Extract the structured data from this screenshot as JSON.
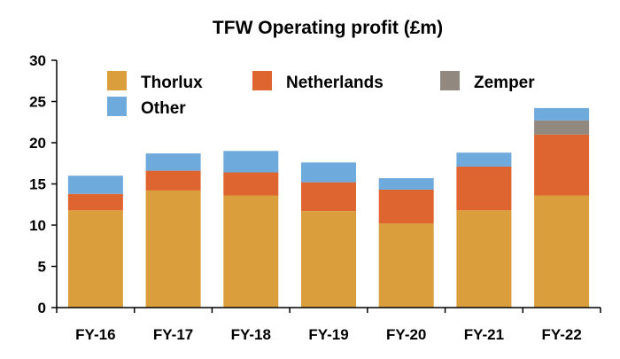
{
  "chart_data": {
    "type": "bar",
    "stacked": true,
    "title": "TFW Operating profit (£m)",
    "xlabel": "",
    "ylabel": "",
    "ylim": [
      0,
      30
    ],
    "yticks": [
      0,
      5,
      10,
      15,
      20,
      25,
      30
    ],
    "grid": false,
    "legend_position": "top-left inside plot",
    "categories": [
      "FY-16",
      "FY-17",
      "FY-18",
      "FY-19",
      "FY-20",
      "FY-21",
      "FY-22"
    ],
    "series": [
      {
        "name": "Thorlux",
        "color": "#DB9E3C",
        "values": [
          11.8,
          14.2,
          13.6,
          11.7,
          10.2,
          11.8,
          13.6
        ]
      },
      {
        "name": "Netherlands",
        "color": "#DE6530",
        "values": [
          2.0,
          2.4,
          2.8,
          3.5,
          4.1,
          5.3,
          7.4
        ]
      },
      {
        "name": "Zemper",
        "color": "#918880",
        "values": [
          0,
          0,
          0,
          0,
          0,
          0,
          1.7
        ]
      },
      {
        "name": "Other",
        "color": "#6FAADC",
        "values": [
          2.2,
          2.1,
          2.6,
          2.4,
          1.4,
          1.7,
          1.5
        ]
      }
    ]
  }
}
